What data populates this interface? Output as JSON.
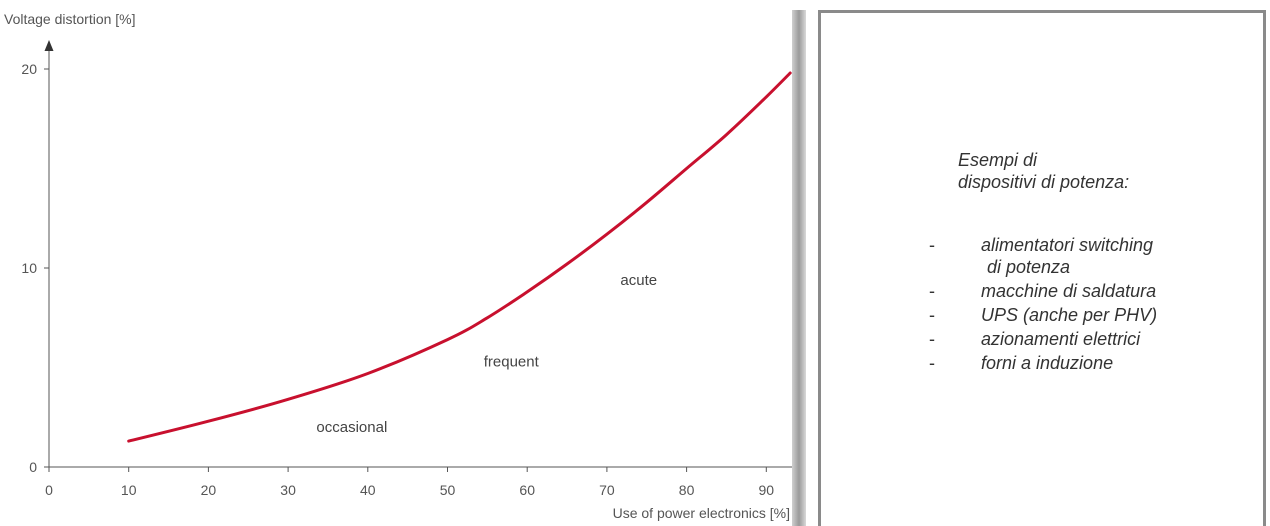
{
  "chart_data": {
    "type": "line",
    "ylabel": "Voltage distortion [%]",
    "xlabel": "Use of power electronics [%]",
    "xlim": [
      0,
      93
    ],
    "ylim": [
      0,
      20
    ],
    "x_ticks": [
      0,
      10,
      20,
      30,
      40,
      50,
      60,
      70,
      80,
      90
    ],
    "y_ticks": [
      0,
      10,
      20
    ],
    "grid": false,
    "series": [
      {
        "color": "#c8102e",
        "x": [
          10,
          20,
          30,
          40,
          50,
          55,
          60,
          65,
          70,
          75,
          80,
          85,
          90,
          93
        ],
        "y": [
          1.3,
          2.3,
          3.4,
          4.7,
          6.4,
          7.5,
          8.8,
          10.2,
          11.7,
          13.3,
          15.0,
          16.7,
          18.6,
          19.8
        ]
      }
    ],
    "annotations": [
      {
        "text": "occasional",
        "x": 38,
        "y": 2.0
      },
      {
        "text": "frequent",
        "x": 58,
        "y": 5.3
      },
      {
        "text": "acute",
        "x": 74,
        "y": 9.4
      }
    ]
  },
  "info": {
    "heading_line1": "Esempi di",
    "heading_line2": "dispositivi di potenza:",
    "items": [
      {
        "dash": "-",
        "lines": [
          "alimentatori switching",
          "di potenza"
        ]
      },
      {
        "dash": "-",
        "lines": [
          "macchine di saldatura"
        ]
      },
      {
        "dash": "-",
        "lines": [
          "UPS (anche per PHV)"
        ]
      },
      {
        "dash": "-",
        "lines": [
          "azionamenti elettrici"
        ]
      },
      {
        "dash": "-",
        "lines": [
          "forni a induzione"
        ]
      }
    ]
  }
}
